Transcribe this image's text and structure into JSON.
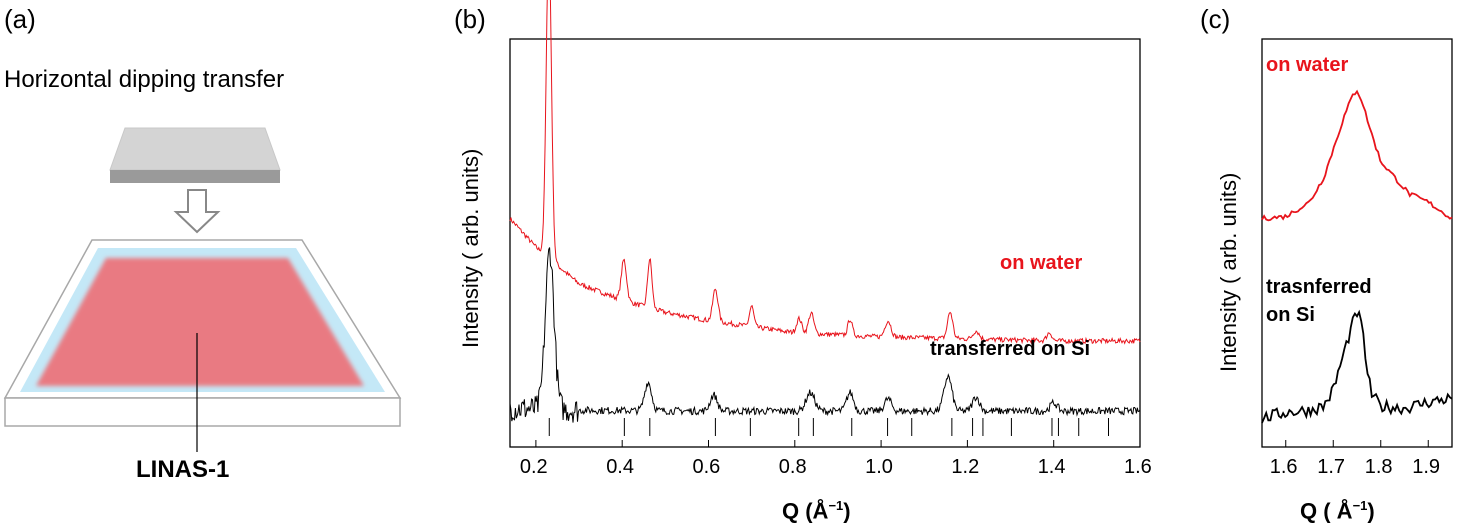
{
  "panel_a": {
    "letter": "(a)",
    "subtitle": "Horizontal dipping transfer",
    "compound_label": "LINAS-1",
    "colors": {
      "substrate_top": "#d4d4d4",
      "substrate_side": "#9a9a9a",
      "water": "#bfe6f5",
      "film": "#e97a82",
      "trough": "#ffffff"
    }
  },
  "panel_b": {
    "letter": "(b)",
    "xlabel": "Q (Å",
    "xlabel_sup": "−1",
    "xlabel_end": ")",
    "ylabel": "Intensity ( arb. units)",
    "x_ticks": [
      "0.2",
      "0.4",
      "0.6",
      "0.8",
      "1.0",
      "1.2",
      "1.4",
      "1.6"
    ],
    "series_labels": {
      "on_water": "on water",
      "transferred": "transferred on Si"
    }
  },
  "panel_c": {
    "letter": "(c)",
    "xlabel": "Q (  Å",
    "xlabel_sup": "−1",
    "xlabel_end": ")",
    "ylabel": "Intensity ( arb. units)",
    "x_ticks": [
      "1.6",
      "1.7",
      "1.8",
      "1.9"
    ],
    "series_labels": {
      "on_water": "on water",
      "transferred_1": "trasnferred",
      "transferred_2": "on Si"
    }
  },
  "chart_data": [
    {
      "type": "line",
      "panel": "b",
      "xlabel": "Q (Å−1)",
      "ylabel": "Intensity ( arb. units)",
      "xlim": [
        0.14,
        1.6
      ],
      "ylim": [
        0,
        1
      ],
      "grid": false,
      "colors": {
        "on water": "#e8141c",
        "transferred on Si": "#000000",
        "ticks": "#000000"
      },
      "series": [
        {
          "name": "on water",
          "baseline": {
            "x": [
              0.14,
              0.2,
              0.3,
              0.4,
              0.5,
              0.6,
              0.8,
              1.0,
              1.2,
              1.4,
              1.6
            ],
            "y": [
              0.56,
              0.49,
              0.4,
              0.36,
              0.33,
              0.31,
              0.28,
              0.27,
              0.265,
              0.26,
              0.26
            ]
          },
          "peaks": [
            [
              0.23,
              0.77,
              0.006
            ],
            [
              0.404,
              0.1,
              0.006
            ],
            [
              0.464,
              0.12,
              0.005
            ],
            [
              0.616,
              0.08,
              0.006
            ],
            [
              0.7,
              0.05,
              0.005
            ],
            [
              0.81,
              0.035,
              0.006
            ],
            [
              0.838,
              0.05,
              0.006
            ],
            [
              0.928,
              0.04,
              0.005
            ],
            [
              1.016,
              0.04,
              0.007
            ],
            [
              1.16,
              0.065,
              0.006
            ],
            [
              1.22,
              0.02,
              0.007
            ],
            [
              1.39,
              0.02,
              0.006
            ]
          ]
        },
        {
          "name": "transferred on Si",
          "baseline": {
            "x": [
              0.14,
              0.3,
              0.6,
              1.0,
              1.6
            ],
            "y": [
              0.095,
              0.09,
              0.088,
              0.088,
              0.088
            ]
          },
          "peaks": [
            [
              0.232,
              0.39,
              0.01
            ],
            [
              0.46,
              0.07,
              0.008
            ],
            [
              0.612,
              0.04,
              0.008
            ],
            [
              0.836,
              0.045,
              0.01
            ],
            [
              0.928,
              0.045,
              0.008
            ],
            [
              1.016,
              0.03,
              0.008
            ],
            [
              1.155,
              0.085,
              0.009
            ],
            [
              1.22,
              0.035,
              0.008
            ],
            [
              1.4,
              0.02,
              0.008
            ]
          ]
        }
      ],
      "reference_ticks": [
        0.231,
        0.405,
        0.464,
        0.616,
        0.697,
        0.809,
        0.843,
        0.932,
        1.015,
        1.071,
        1.164,
        1.212,
        1.236,
        1.302,
        1.396,
        1.411,
        1.458,
        1.527
      ]
    },
    {
      "type": "line",
      "panel": "c",
      "xlabel": "Q (Å−1)",
      "ylabel": "Intensity ( arb. units)",
      "xlim": [
        1.55,
        1.95
      ],
      "ylim": [
        0,
        1
      ],
      "grid": false,
      "colors": {
        "on water": "#e8141c",
        "transferred on Si": "#000000"
      },
      "series": [
        {
          "name": "on water",
          "x": [
            1.55,
            1.6,
            1.65,
            1.68,
            1.7,
            1.72,
            1.74,
            1.75,
            1.76,
            1.78,
            1.8,
            1.83,
            1.86,
            1.9,
            1.95
          ],
          "y": [
            0.56,
            0.565,
            0.6,
            0.66,
            0.73,
            0.8,
            0.86,
            0.875,
            0.85,
            0.77,
            0.7,
            0.66,
            0.62,
            0.6,
            0.56
          ]
        },
        {
          "name": "transferred on Si",
          "x": [
            1.55,
            1.6,
            1.65,
            1.68,
            1.7,
            1.72,
            1.74,
            1.75,
            1.76,
            1.77,
            1.78,
            1.8,
            1.85,
            1.9,
            1.95
          ],
          "y": [
            0.07,
            0.085,
            0.09,
            0.1,
            0.14,
            0.22,
            0.3,
            0.33,
            0.3,
            0.2,
            0.13,
            0.1,
            0.095,
            0.11,
            0.12
          ]
        }
      ]
    }
  ]
}
